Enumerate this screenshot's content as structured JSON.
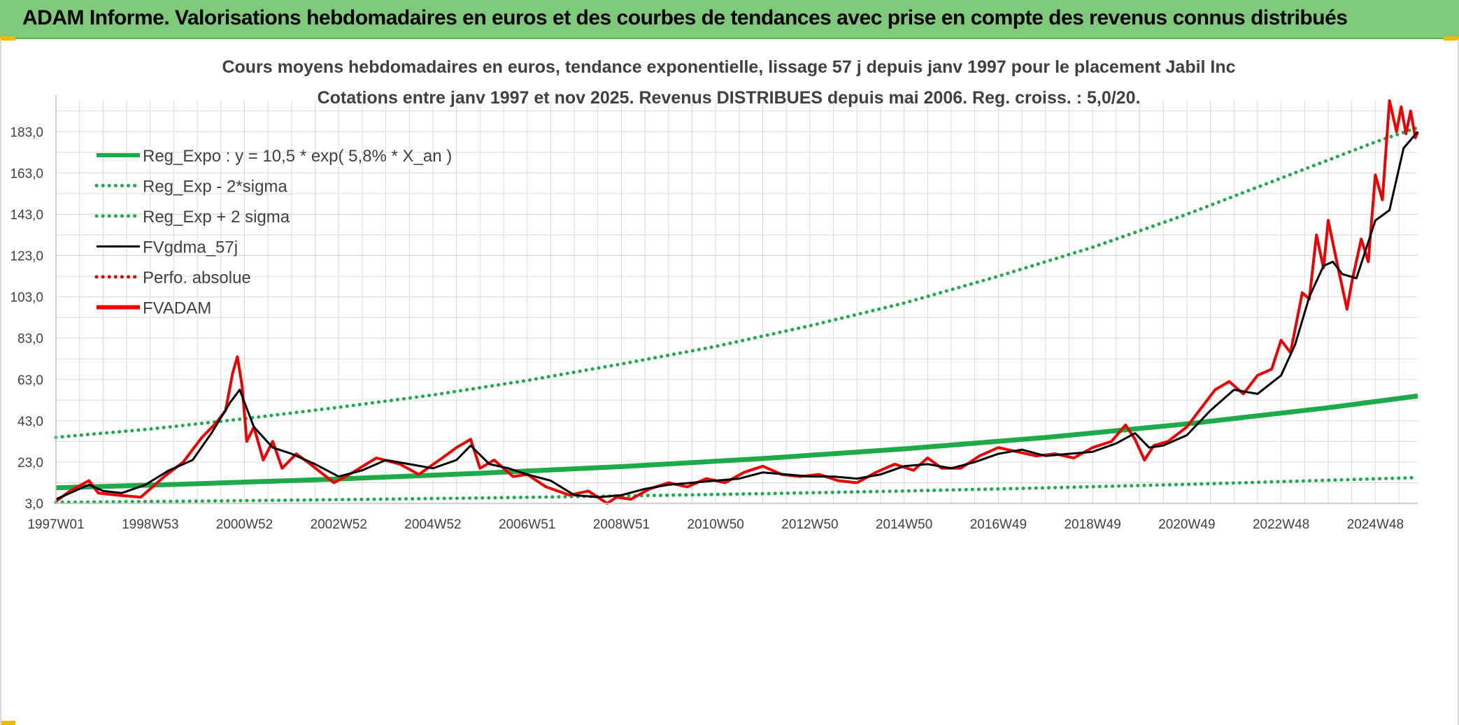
{
  "banner": {
    "title": "ADAM Informe. Valorisations hebdomadaires en euros et des courbes de tendances avec prise en compte des revenus connus distribués"
  },
  "colors": {
    "banner_bg": "#7ec97a",
    "reg_expo": "#1faa4a",
    "sigma": "#1faa4a",
    "fvgdma": "#000000",
    "perfo": "#e00000",
    "fvadam": "#ee0000",
    "grid": "#d9d9d9"
  },
  "chart_data": {
    "type": "line",
    "title": [
      "Cours moyens hebdomadaires en euros, tendance exponentielle, lissage 57 j depuis janv 1997 pour le placement Jabil Inc",
      "Cotations entre janv 1997 et nov 2025. Revenus DISTRIBUES depuis mai 2006. Reg. croiss. : 5,0/20."
    ],
    "xlabel": "",
    "ylabel": "",
    "ylim": [
      3.0,
      198.0
    ],
    "xlim": [
      1997.0,
      2025.9
    ],
    "y_ticks": [
      "3,0",
      "23,0",
      "43,0",
      "63,0",
      "83,0",
      "103,0",
      "123,0",
      "143,0",
      "163,0",
      "183,0"
    ],
    "y_tick_values": [
      3,
      23,
      43,
      63,
      83,
      103,
      123,
      143,
      163,
      183
    ],
    "x_ticks": [
      "1997W01",
      "1998W53",
      "2000W52",
      "2002W52",
      "2004W52",
      "2006W51",
      "2008W51",
      "2010W50",
      "2012W50",
      "2014W50",
      "2016W49",
      "2018W49",
      "2020W49",
      "2022W48",
      "2024W48"
    ],
    "x_tick_values": [
      1997.0,
      1999.0,
      2001.0,
      2003.0,
      2005.0,
      2007.0,
      2009.0,
      2011.0,
      2013.0,
      2015.0,
      2017.0,
      2019.0,
      2021.0,
      2023.0,
      2025.0
    ],
    "grid": true,
    "legend_position": "top-left",
    "series": [
      {
        "name": "Reg_Expo : y = 10,5 * exp( 5,8% *  X_an )",
        "style": "solid-thick",
        "color": "#1faa4a",
        "x": [
          1997.0,
          2000.0,
          2003.0,
          2006.0,
          2009.0,
          2012.0,
          2015.0,
          2018.0,
          2021.0,
          2024.0,
          2025.9
        ],
        "y": [
          10.5,
          12.5,
          14.8,
          17.6,
          20.8,
          24.7,
          29.4,
          34.9,
          41.5,
          49.3,
          55.0
        ]
      },
      {
        "name": "Reg_Exp - 2*sigma",
        "style": "dotted",
        "color": "#1faa4a",
        "x": [
          1997.0,
          2000.0,
          2003.0,
          2006.0,
          2009.0,
          2012.0,
          2015.0,
          2018.0,
          2021.0,
          2024.0,
          2025.9
        ],
        "y": [
          3.5,
          4.1,
          4.8,
          5.6,
          6.6,
          7.7,
          9.0,
          10.5,
          12.2,
          14.2,
          15.5
        ]
      },
      {
        "name": "Reg_Exp + 2 sigma",
        "style": "dotted",
        "color": "#1faa4a",
        "x": [
          1997.0,
          1999.0,
          2001.0,
          2003.0,
          2005.0,
          2007.0,
          2009.0,
          2011.0,
          2013.0,
          2015.0,
          2017.0,
          2019.0,
          2021.0,
          2023.0,
          2025.0,
          2025.9
        ],
        "y": [
          35.0,
          39.0,
          44.0,
          49.5,
          55.5,
          62.5,
          70.5,
          79.0,
          89.0,
          100.0,
          113.0,
          127.0,
          143.0,
          160.5,
          178.0,
          185.0
        ]
      },
      {
        "name": "FVgdma_57j",
        "style": "solid",
        "color": "#000000",
        "x": [
          1997.0,
          1997.3,
          1997.7,
          1998.0,
          1998.4,
          1998.9,
          1999.4,
          1999.9,
          2000.3,
          2000.7,
          2000.9,
          2001.2,
          2001.6,
          2002.0,
          2002.5,
          2003.0,
          2003.5,
          2004.0,
          2004.5,
          2005.0,
          2005.5,
          2005.8,
          2006.2,
          2006.6,
          2007.0,
          2007.5,
          2008.0,
          2008.5,
          2009.0,
          2009.5,
          2010.0,
          2010.5,
          2011.0,
          2011.5,
          2012.0,
          2012.5,
          2013.0,
          2013.5,
          2014.0,
          2014.5,
          2015.0,
          2015.5,
          2016.0,
          2016.5,
          2017.0,
          2017.5,
          2018.0,
          2018.5,
          2019.0,
          2019.5,
          2019.9,
          2020.2,
          2020.5,
          2021.0,
          2021.5,
          2022.0,
          2022.5,
          2023.0,
          2023.3,
          2023.6,
          2023.9,
          2024.1,
          2024.3,
          2024.6,
          2025.0,
          2025.3,
          2025.6,
          2025.9
        ],
        "y": [
          5,
          8,
          12,
          9,
          8,
          12,
          19,
          24,
          37,
          52,
          58,
          40,
          30,
          27,
          22,
          16,
          19,
          24,
          22,
          20,
          24,
          31,
          22,
          20,
          17,
          14,
          7,
          6,
          7,
          10,
          12,
          13,
          14,
          15,
          18,
          17,
          16,
          16,
          15,
          17,
          21,
          22,
          20,
          23,
          27,
          29,
          26,
          27,
          28,
          32,
          37,
          30,
          31,
          36,
          48,
          58,
          56,
          65,
          80,
          103,
          118,
          120,
          114,
          112,
          140,
          145,
          175,
          183
        ]
      },
      {
        "name": "Perfo. absolue",
        "style": "dotted",
        "color": "#e00000",
        "x": [],
        "y": []
      },
      {
        "name": "FVADAM",
        "style": "solid-thick",
        "color": "#ee0000",
        "x": [
          1997.0,
          1997.3,
          1997.7,
          1997.9,
          1998.3,
          1998.8,
          1999.3,
          1999.7,
          2000.1,
          2000.4,
          2000.6,
          2000.75,
          2000.85,
          2000.95,
          2001.05,
          2001.2,
          2001.4,
          2001.6,
          2001.8,
          2002.1,
          2002.4,
          2002.9,
          2003.3,
          2003.8,
          2004.3,
          2004.7,
          2005.2,
          2005.5,
          2005.8,
          2006.0,
          2006.3,
          2006.7,
          2007.0,
          2007.4,
          2007.9,
          2008.3,
          2008.7,
          2008.9,
          2009.2,
          2009.6,
          2010.0,
          2010.4,
          2010.8,
          2011.2,
          2011.6,
          2012.0,
          2012.4,
          2012.8,
          2013.2,
          2013.6,
          2014.0,
          2014.4,
          2014.8,
          2015.2,
          2015.5,
          2015.8,
          2016.2,
          2016.6,
          2017.0,
          2017.4,
          2017.8,
          2018.2,
          2018.6,
          2019.0,
          2019.4,
          2019.7,
          2019.9,
          2020.1,
          2020.3,
          2020.6,
          2021.0,
          2021.3,
          2021.6,
          2021.9,
          2022.2,
          2022.5,
          2022.8,
          2023.0,
          2023.2,
          2023.45,
          2023.6,
          2023.75,
          2023.9,
          2024.0,
          2024.2,
          2024.4,
          2024.5,
          2024.7,
          2024.85,
          2025.0,
          2025.15,
          2025.3,
          2025.45,
          2025.55,
          2025.65,
          2025.75,
          2025.85,
          2025.9
        ],
        "y": [
          4,
          9,
          14,
          8,
          7,
          6,
          16,
          23,
          35,
          42,
          48,
          66,
          74,
          60,
          33,
          40,
          24,
          33,
          20,
          27,
          22,
          13,
          18,
          25,
          22,
          17,
          25,
          30,
          34,
          20,
          24,
          16,
          17,
          11,
          7,
          9,
          3,
          6,
          5,
          10,
          13,
          11,
          15,
          13,
          18,
          21,
          17,
          16,
          17,
          14,
          13,
          18,
          22,
          19,
          25,
          20,
          20,
          26,
          30,
          28,
          26,
          27,
          25,
          30,
          33,
          41,
          34,
          24,
          31,
          33,
          40,
          49,
          58,
          62,
          56,
          65,
          68,
          82,
          76,
          105,
          102,
          133,
          117,
          140,
          118,
          97,
          110,
          131,
          120,
          162,
          150,
          200,
          183,
          195,
          182,
          193,
          180,
          183
        ]
      }
    ]
  }
}
